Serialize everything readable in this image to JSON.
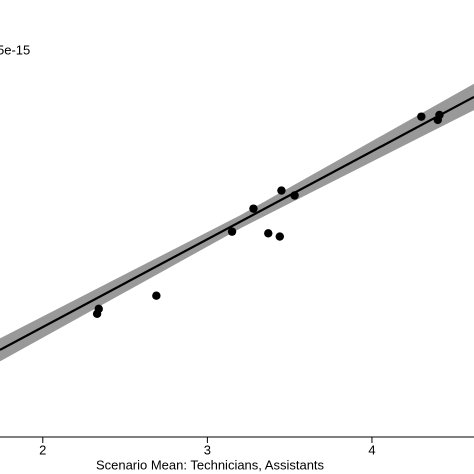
{
  "chart_data": {
    "type": "scatter",
    "annotation": "5e-15",
    "x_label": "Scenario Mean: Technicians, Assistants",
    "xlim": [
      1.74,
      4.62
    ],
    "xticks": [
      2,
      3,
      4
    ],
    "ylim": [
      2,
      4.66
    ],
    "series": [
      {
        "color": "#000000",
        "x": [
          2.34,
          2.33,
          2.69,
          3.15,
          3.28,
          3.37,
          3.44,
          3.45,
          3.53,
          4.3,
          4.4,
          4.41
        ],
        "values": [
          2.78,
          2.75,
          2.86,
          3.25,
          3.39,
          3.24,
          3.22,
          3.5,
          3.47,
          3.95,
          3.93,
          3.96
        ]
      }
    ],
    "fit": {
      "color": "#000000",
      "x": [
        1.74,
        4.62
      ],
      "values": [
        2.53,
        4.07
      ]
    },
    "band": {
      "color": "#999999",
      "x": [
        1.74,
        3.2,
        4.62
      ],
      "lower": [
        2.46,
        3.27,
        3.99
      ],
      "upper": [
        2.6,
        3.35,
        4.15
      ]
    }
  }
}
